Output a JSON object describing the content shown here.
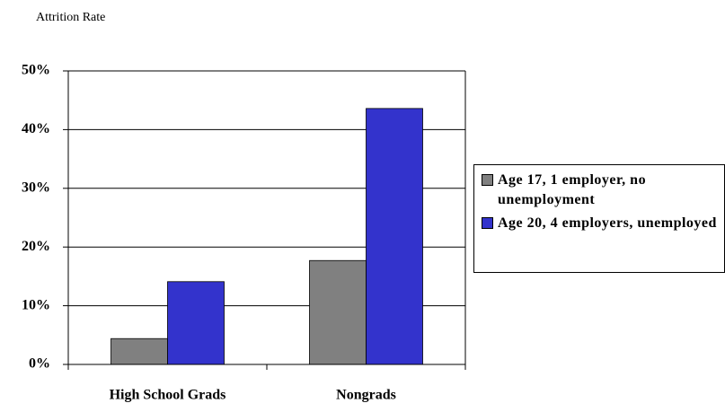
{
  "chart_data": {
    "type": "bar",
    "title": "Attrition Rate",
    "categories": [
      "High School Grads",
      "Nongrads"
    ],
    "series": [
      {
        "name": "Age 17, 1 employer, no unemployment",
        "color": "#808080",
        "values": [
          4.4,
          17.7
        ]
      },
      {
        "name": "Age 20, 4 employers, unemployed",
        "color": "#3333cc",
        "values": [
          14.1,
          43.6
        ]
      }
    ],
    "ylim": [
      0,
      50
    ],
    "yticks": [
      {
        "value": 0,
        "label": "0%"
      },
      {
        "value": 10,
        "label": "10%"
      },
      {
        "value": 20,
        "label": "20%"
      },
      {
        "value": 30,
        "label": "30%"
      },
      {
        "value": 40,
        "label": "40%"
      },
      {
        "value": 50,
        "label": "50%"
      }
    ],
    "grid": true,
    "legend": "right"
  }
}
